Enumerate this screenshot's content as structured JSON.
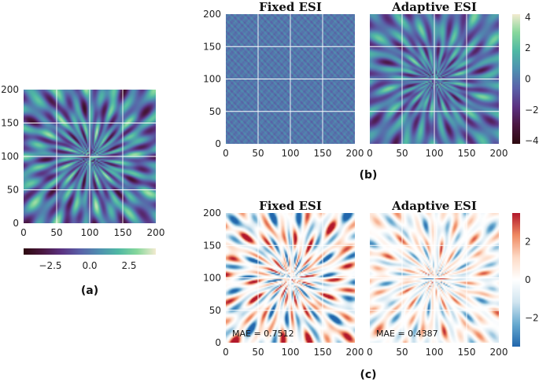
{
  "figure_labels": {
    "a": "(a)",
    "b": "(b)",
    "c": "(c)"
  },
  "colors": {
    "field_cmap": [
      "#2d0a0f",
      "#4a1740",
      "#5b3281",
      "#5a61a8",
      "#4f8fb0",
      "#4fb8a4",
      "#86d79b",
      "#f3ebd0"
    ],
    "error_cmap": [
      "#2166ac",
      "#67a9cf",
      "#d1e5f0",
      "#ffffff",
      "#fddbc7",
      "#ef8a62",
      "#b2182b"
    ],
    "grid": "#ffffff"
  },
  "chart_data": [
    {
      "id": "a",
      "type": "heatmap",
      "panel_label": "(a)",
      "title": "",
      "xticks": [
        "0",
        "50",
        "100",
        "150",
        "200"
      ],
      "yticks": [
        "0",
        "50",
        "100",
        "150",
        "200"
      ],
      "xlim": [
        0,
        200
      ],
      "ylim": [
        0,
        200
      ],
      "colorbar": {
        "orientation": "horizontal",
        "range": [
          -4.2,
          4.2
        ],
        "ticks": [
          "−2.5",
          "0.0",
          "2.5"
        ],
        "tick_values": [
          -2.5,
          0,
          2.5
        ]
      },
      "field": {
        "kind": "radial-streaks",
        "amplitude": 3.6,
        "seed": 1
      }
    },
    {
      "id": "b1",
      "type": "heatmap",
      "panel_label": "(b)",
      "title": "Fixed ESI",
      "xticks": [
        "0",
        "50",
        "100",
        "150",
        "200"
      ],
      "yticks": [
        "0",
        "50",
        "100",
        "150",
        "200"
      ],
      "xlim": [
        0,
        200
      ],
      "ylim": [
        0,
        200
      ],
      "field": {
        "kind": "noise",
        "amplitude": 1.2,
        "seed": 2
      }
    },
    {
      "id": "b2",
      "type": "heatmap",
      "title": "Adaptive ESI",
      "xticks": [
        "0",
        "50",
        "100",
        "150",
        "200"
      ],
      "yticks": [],
      "xlim": [
        0,
        200
      ],
      "ylim": [
        0,
        200
      ],
      "colorbar": {
        "orientation": "vertical",
        "range": [
          -4.2,
          4.2
        ],
        "ticks": [
          "4",
          "2",
          "0",
          "−2",
          "−4"
        ],
        "tick_values": [
          4,
          2,
          0,
          -2,
          -4
        ]
      },
      "field": {
        "kind": "radial-streaks",
        "amplitude": 2.9,
        "seed": 3
      }
    },
    {
      "id": "c1",
      "type": "heatmap",
      "panel_label": "(c)",
      "title": "Fixed ESI",
      "annotation": "MAE = 0.7512",
      "mae": 0.7512,
      "xticks": [
        "0",
        "50",
        "100",
        "150",
        "200"
      ],
      "yticks": [
        "0",
        "50",
        "100",
        "150",
        "200"
      ],
      "xlim": [
        0,
        200
      ],
      "ylim": [
        0,
        200
      ],
      "field": {
        "kind": "error-streaks",
        "amplitude": 3.2,
        "seed": 4
      }
    },
    {
      "id": "c2",
      "type": "heatmap",
      "title": "Adaptive ESI",
      "annotation": "MAE = 0.4387",
      "mae": 0.4387,
      "xticks": [
        "0",
        "50",
        "100",
        "150",
        "200"
      ],
      "yticks": [],
      "xlim": [
        0,
        200
      ],
      "ylim": [
        0,
        200
      ],
      "colorbar": {
        "orientation": "vertical",
        "range": [
          -3.5,
          3.5
        ],
        "ticks": [
          "2",
          "0",
          "−2"
        ],
        "tick_values": [
          2,
          0,
          -2
        ]
      },
      "field": {
        "kind": "error-streaks",
        "amplitude": 2.0,
        "seed": 5
      }
    }
  ]
}
